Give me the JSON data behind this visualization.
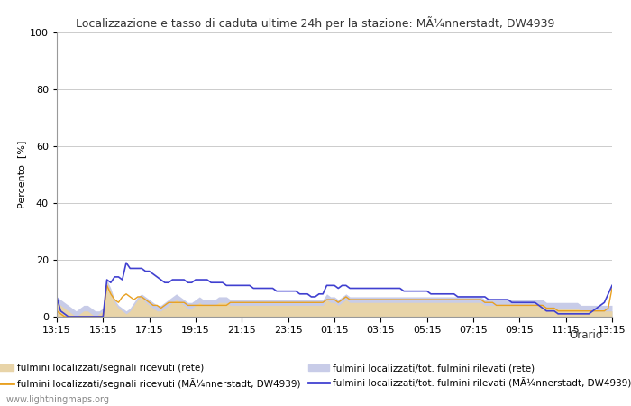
{
  "title": "Localizzazione e tasso di caduta ultime 24h per la stazione: MÃ¼nnerstadt, DW4939",
  "ylabel": "Percento  [%]",
  "xlabel_orario": "Orario",
  "ylim": [
    0,
    100
  ],
  "yticks": [
    0,
    20,
    40,
    60,
    80,
    100
  ],
  "xtick_labels": [
    "13:15",
    "15:15",
    "17:15",
    "19:15",
    "21:15",
    "23:15",
    "01:15",
    "03:15",
    "05:15",
    "07:15",
    "09:15",
    "11:15",
    "13:15"
  ],
  "legend_labels": [
    "fulmini localizzati/segnali ricevuti (rete)",
    "fulmini localizzati/tot. fulmini rilevati (rete)",
    "fulmini localizzati/segnali ricevuti (MÃ¼nnerstadt, DW4939)",
    "fulmini localizzati/tot. fulmini rilevati (MÃ¼nnerstadt, DW4939)"
  ],
  "fill_color_rete_segnali": "#e8d4a8",
  "fill_color_rete_tot": "#c8cce8",
  "line_color_station_segnali": "#e8a020",
  "line_color_station_tot": "#4040d0",
  "background_color": "#ffffff",
  "watermark": "www.lightningmaps.org",
  "n_points": 145,
  "rete_segnali": [
    5,
    4,
    3,
    2,
    1,
    0,
    1,
    2,
    2,
    1,
    0,
    1,
    2,
    12,
    9,
    5,
    3,
    2,
    1,
    2,
    4,
    6,
    7,
    5,
    4,
    3,
    2,
    2,
    3,
    4,
    5,
    6,
    5,
    4,
    3,
    3,
    4,
    5,
    4,
    4,
    4,
    4,
    5,
    5,
    5,
    4,
    4,
    4,
    4,
    4,
    4,
    4,
    4,
    4,
    4,
    4,
    4,
    4,
    4,
    4,
    4,
    4,
    4,
    4,
    4,
    4,
    4,
    4,
    4,
    4,
    6,
    5,
    5,
    4,
    5,
    6,
    5,
    5,
    5,
    5,
    5,
    5,
    5,
    5,
    5,
    5,
    5,
    5,
    5,
    5,
    5,
    5,
    5,
    5,
    5,
    5,
    5,
    5,
    5,
    5,
    5,
    5,
    5,
    5,
    5,
    5,
    5,
    5,
    5,
    5,
    5,
    4,
    4,
    4,
    4,
    4,
    4,
    4,
    4,
    4,
    4,
    4,
    4,
    4,
    4,
    4,
    4,
    3,
    3,
    3,
    3,
    3,
    3,
    3,
    3,
    3,
    2,
    2,
    2,
    2,
    2,
    2,
    2,
    2,
    2
  ],
  "rete_tot": [
    7,
    6,
    5,
    4,
    3,
    2,
    3,
    4,
    4,
    3,
    2,
    2,
    3,
    13,
    10,
    6,
    4,
    3,
    2,
    3,
    5,
    7,
    8,
    7,
    6,
    5,
    4,
    4,
    5,
    6,
    7,
    8,
    7,
    6,
    5,
    5,
    6,
    7,
    6,
    6,
    6,
    6,
    7,
    7,
    7,
    6,
    6,
    6,
    6,
    6,
    6,
    6,
    6,
    6,
    6,
    6,
    6,
    6,
    6,
    6,
    6,
    6,
    6,
    6,
    6,
    6,
    6,
    6,
    6,
    6,
    8,
    7,
    7,
    6,
    7,
    8,
    7,
    7,
    7,
    7,
    7,
    7,
    7,
    7,
    7,
    7,
    7,
    7,
    7,
    7,
    7,
    7,
    7,
    7,
    7,
    7,
    7,
    7,
    7,
    7,
    7,
    7,
    7,
    7,
    7,
    7,
    7,
    7,
    7,
    7,
    7,
    6,
    6,
    6,
    6,
    6,
    6,
    6,
    6,
    6,
    6,
    6,
    6,
    6,
    6,
    6,
    6,
    5,
    5,
    5,
    5,
    5,
    5,
    5,
    5,
    5,
    4,
    4,
    4,
    4,
    4,
    4,
    4,
    4,
    4
  ],
  "station_segnali": [
    2,
    1,
    0,
    0,
    0,
    0,
    0,
    0,
    0,
    0,
    0,
    0,
    0,
    11,
    8,
    6,
    5,
    7,
    8,
    7,
    6,
    7,
    7,
    6,
    5,
    4,
    4,
    3,
    4,
    5,
    5,
    5,
    5,
    5,
    4,
    4,
    4,
    4,
    4,
    4,
    4,
    4,
    4,
    4,
    4,
    5,
    5,
    5,
    5,
    5,
    5,
    5,
    5,
    5,
    5,
    5,
    5,
    5,
    5,
    5,
    5,
    5,
    5,
    5,
    5,
    5,
    5,
    5,
    5,
    5,
    6,
    6,
    6,
    5,
    6,
    7,
    6,
    6,
    6,
    6,
    6,
    6,
    6,
    6,
    6,
    6,
    6,
    6,
    6,
    6,
    6,
    6,
    6,
    6,
    6,
    6,
    6,
    6,
    6,
    6,
    6,
    6,
    6,
    6,
    6,
    6,
    6,
    6,
    6,
    6,
    6,
    5,
    5,
    5,
    4,
    4,
    4,
    4,
    4,
    4,
    4,
    4,
    4,
    4,
    4,
    4,
    4,
    3,
    3,
    3,
    2,
    2,
    2,
    2,
    2,
    2,
    2,
    2,
    2,
    2,
    2,
    2,
    2,
    3,
    10
  ],
  "station_tot": [
    7,
    2,
    1,
    0,
    0,
    0,
    0,
    0,
    0,
    0,
    0,
    0,
    0,
    13,
    12,
    14,
    14,
    13,
    19,
    17,
    17,
    17,
    17,
    16,
    16,
    15,
    14,
    13,
    12,
    12,
    13,
    13,
    13,
    13,
    12,
    12,
    13,
    13,
    13,
    13,
    12,
    12,
    12,
    12,
    11,
    11,
    11,
    11,
    11,
    11,
    11,
    10,
    10,
    10,
    10,
    10,
    10,
    9,
    9,
    9,
    9,
    9,
    9,
    8,
    8,
    8,
    7,
    7,
    8,
    8,
    11,
    11,
    11,
    10,
    11,
    11,
    10,
    10,
    10,
    10,
    10,
    10,
    10,
    10,
    10,
    10,
    10,
    10,
    10,
    10,
    9,
    9,
    9,
    9,
    9,
    9,
    9,
    8,
    8,
    8,
    8,
    8,
    8,
    8,
    7,
    7,
    7,
    7,
    7,
    7,
    7,
    7,
    6,
    6,
    6,
    6,
    6,
    6,
    5,
    5,
    5,
    5,
    5,
    5,
    5,
    4,
    3,
    2,
    2,
    2,
    1,
    1,
    1,
    1,
    1,
    1,
    1,
    1,
    1,
    2,
    3,
    4,
    5,
    8,
    11
  ]
}
